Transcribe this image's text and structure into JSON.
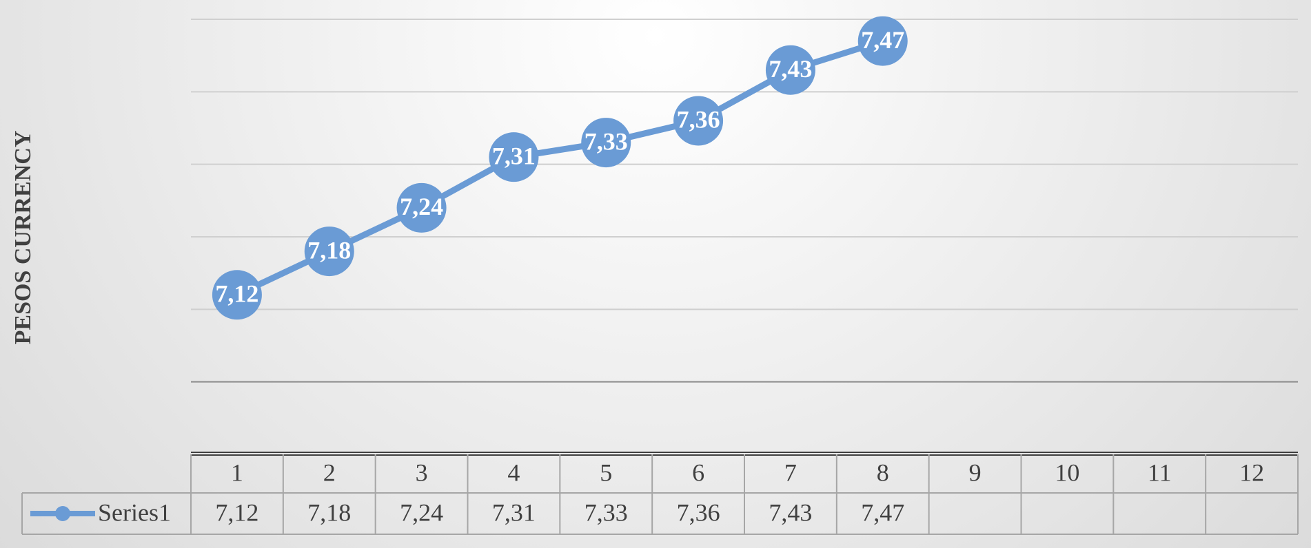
{
  "chart_data": {
    "type": "line",
    "y_label": "PESOS CURRENCY",
    "categories": [
      "1",
      "2",
      "3",
      "4",
      "5",
      "6",
      "7",
      "8",
      "9",
      "10",
      "11",
      "12"
    ],
    "series": [
      {
        "name": "Series1",
        "color": "#6a9bd5",
        "values": [
          7.12,
          7.18,
          7.24,
          7.31,
          7.33,
          7.36,
          7.43,
          7.47,
          null,
          null,
          null,
          null
        ],
        "value_labels": [
          "7,12",
          "7,18",
          "7,24",
          "7,31",
          "7,33",
          "7,36",
          "7,43",
          "7,47",
          null,
          null,
          null,
          null
        ]
      }
    ],
    "ylim": [
      6.9,
      7.5
    ],
    "yticks": [
      6.9,
      7.0,
      7.1,
      7.2,
      7.3,
      7.4,
      7.5
    ],
    "grid": true,
    "y_tick_labels": false,
    "data_table": true
  }
}
